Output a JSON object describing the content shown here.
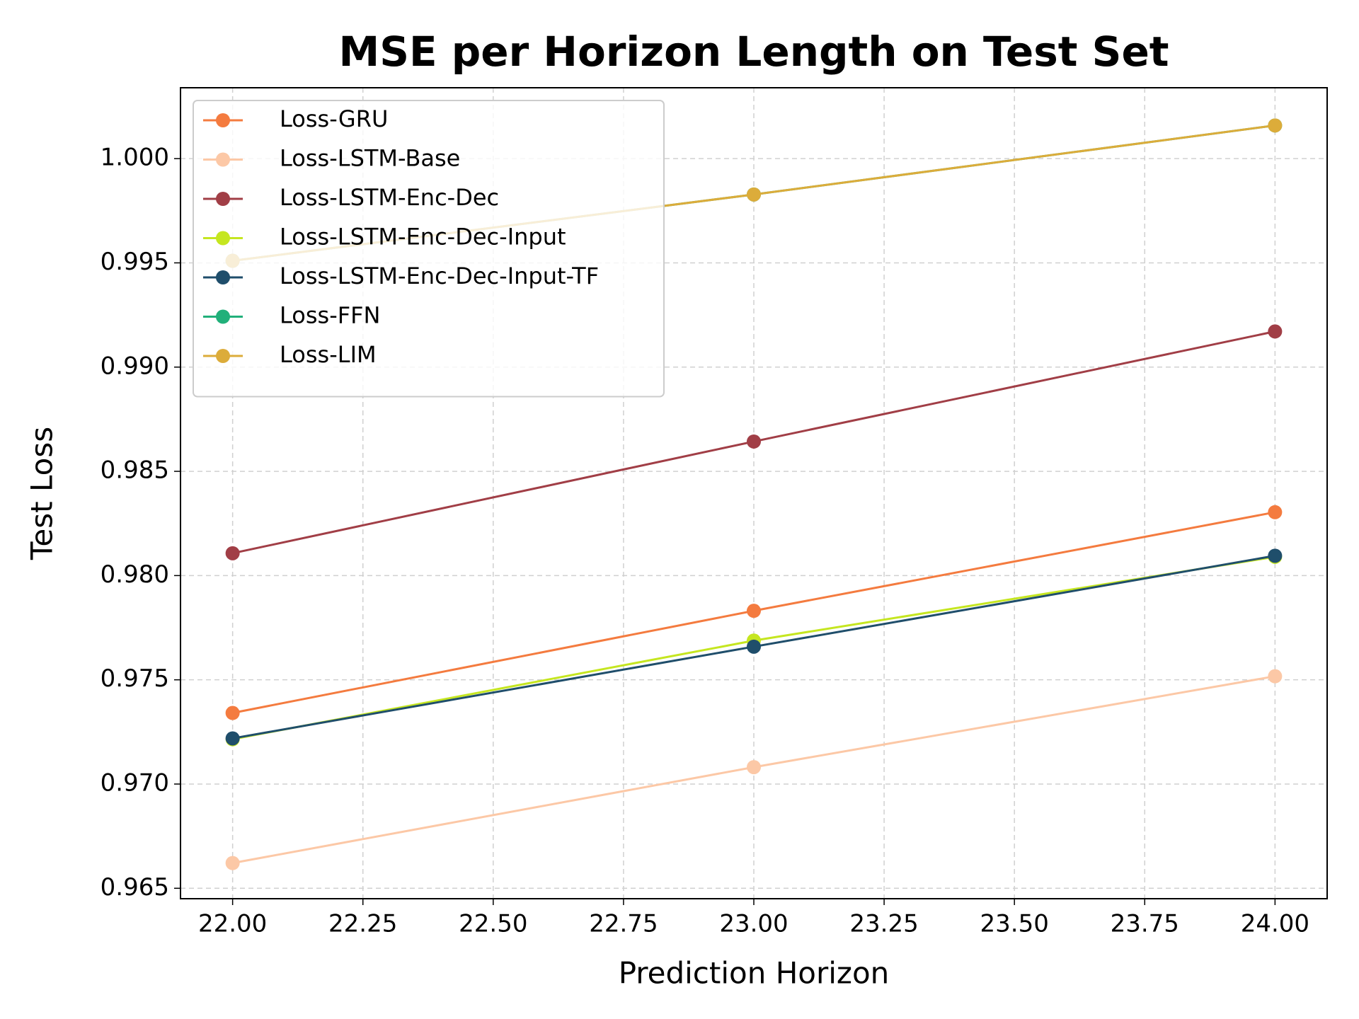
{
  "chart_data": {
    "type": "line",
    "title": "MSE per Horizon Length on Test Set",
    "xlabel": "Prediction Horizon",
    "ylabel": "Test Loss",
    "x": [
      22,
      23,
      24
    ],
    "series": [
      {
        "name": "Loss-GRU",
        "color": "#f47b3f",
        "values": [
          0.97341,
          0.97831,
          0.98304
        ]
      },
      {
        "name": "Loss-LSTM-Base",
        "color": "#fcc8a6",
        "values": [
          0.96621,
          0.97081,
          0.97517
        ]
      },
      {
        "name": "Loss-LSTM-Enc-Dec",
        "color": "#a13e46",
        "values": [
          0.98107,
          0.98643,
          0.99171
        ]
      },
      {
        "name": "Loss-LSTM-Enc-Dec-Input",
        "color": "#c5e620",
        "values": [
          0.97215,
          0.97688,
          0.9809
        ]
      },
      {
        "name": "Loss-LSTM-Enc-Dec-Input-TF",
        "color": "#1f4e6b",
        "values": [
          0.97219,
          0.97659,
          0.98095
        ]
      },
      {
        "name": "Loss-FFN",
        "color": "#21b07a",
        "values": [
          0.9951,
          0.99828,
          1.00159
        ]
      },
      {
        "name": "Loss-LIM",
        "color": "#dcac3a",
        "values": [
          0.9951,
          0.99828,
          1.00159
        ]
      }
    ],
    "xlim": [
      21.9,
      24.1
    ],
    "ylim": [
      0.9645,
      1.0034
    ],
    "xticks": [
      {
        "value": 22,
        "label": "22.00"
      },
      {
        "value": 22.25,
        "label": "22.25"
      },
      {
        "value": 22.5,
        "label": "22.50"
      },
      {
        "value": 22.75,
        "label": "22.75"
      },
      {
        "value": 23,
        "label": "23.00"
      },
      {
        "value": 23.25,
        "label": "23.25"
      },
      {
        "value": 23.5,
        "label": "23.50"
      },
      {
        "value": 23.75,
        "label": "23.75"
      },
      {
        "value": 24,
        "label": "24.00"
      }
    ],
    "yticks": [
      {
        "value": 0.965,
        "label": "0.965"
      },
      {
        "value": 0.97,
        "label": "0.970"
      },
      {
        "value": 0.975,
        "label": "0.975"
      },
      {
        "value": 0.98,
        "label": "0.980"
      },
      {
        "value": 0.985,
        "label": "0.985"
      },
      {
        "value": 0.99,
        "label": "0.990"
      },
      {
        "value": 0.995,
        "label": "0.995"
      },
      {
        "value": 1,
        "label": "1.000"
      }
    ],
    "grid": true,
    "legend": "upper left"
  }
}
